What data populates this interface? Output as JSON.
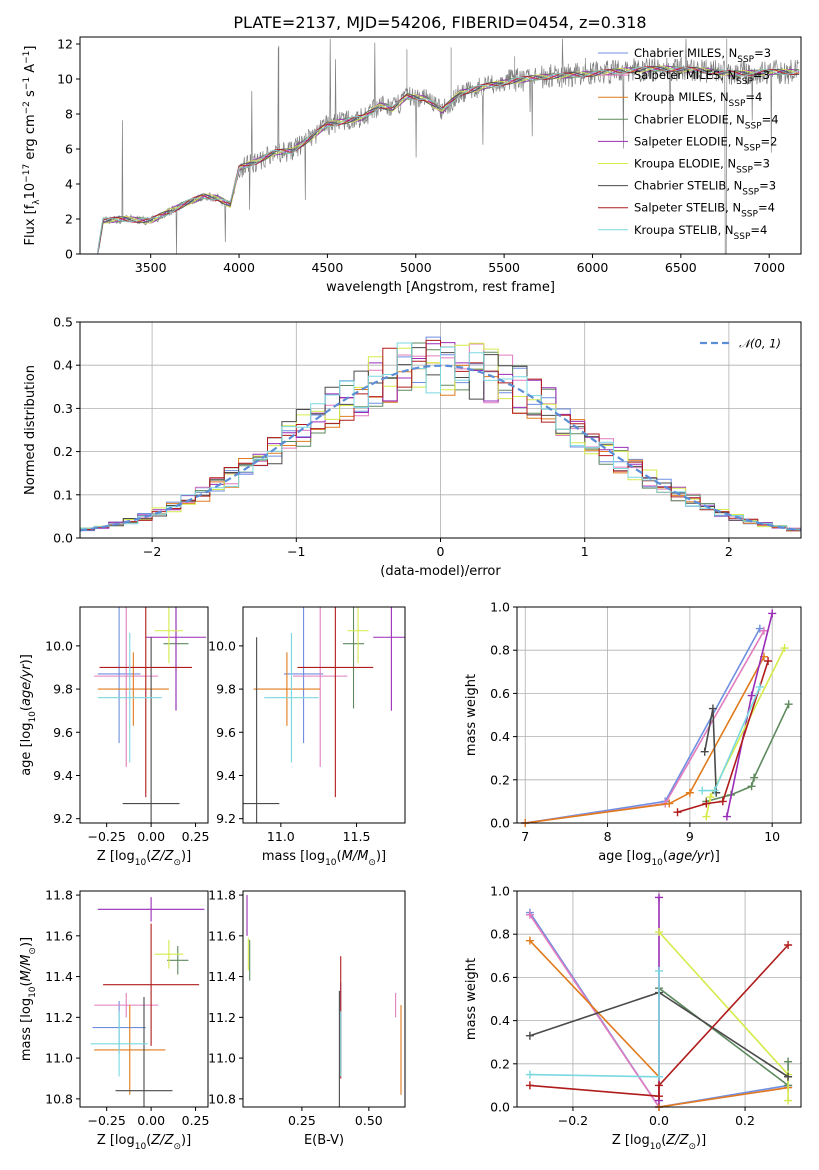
{
  "title": "PLATE=2137, MJD=54206, FIBERID=0454, z=0.318",
  "colors": {
    "spectrum": "#808080",
    "Chabrier MILES": "#6f8fe0",
    "Salpeter MILES": "#e07cbf",
    "Kroupa MILES": "#e07b1d",
    "Chabrier ELODIE": "#5e8a5e",
    "Salpeter ELODIE": "#9a2db8",
    "Kroupa ELODIE": "#d6ea4a",
    "Chabrier STELIB": "#4a4a4a",
    "Salpeter STELIB": "#b01c1c",
    "Kroupa STELIB": "#7ad8e0",
    "normal_fit": "#5b8ed6"
  },
  "chart_data": [
    {
      "id": "spectrum",
      "type": "line",
      "title": "PLATE=2137, MJD=54206, FIBERID=0454, z=0.318",
      "xlabel": "wavelength [Angstrom, rest frame]",
      "ylabel": "Flux [f_λ 10^-17 erg cm^-2 s^-1 A^-1]",
      "xlim": [
        3100,
        7180
      ],
      "ylim": [
        0,
        12.4
      ],
      "xticks": [
        3500,
        4000,
        4500,
        5000,
        5500,
        6000,
        6500,
        7000
      ],
      "yticks": [
        0,
        2,
        4,
        6,
        8,
        10,
        12
      ],
      "grid": false,
      "legend_position": "top-right",
      "continuum": [
        [
          3200,
          0
        ],
        [
          3230,
          1.9
        ],
        [
          3350,
          2.0
        ],
        [
          3500,
          1.9
        ],
        [
          3600,
          2.4
        ],
        [
          3700,
          2.9
        ],
        [
          3800,
          3.3
        ],
        [
          3880,
          3.2
        ],
        [
          3950,
          2.8
        ],
        [
          4000,
          4.9
        ],
        [
          4100,
          5.3
        ],
        [
          4200,
          5.8
        ],
        [
          4300,
          5.9
        ],
        [
          4400,
          6.6
        ],
        [
          4500,
          7.4
        ],
        [
          4600,
          7.6
        ],
        [
          4700,
          7.8
        ],
        [
          4800,
          8.5
        ],
        [
          4870,
          8.3
        ],
        [
          4950,
          9.0
        ],
        [
          5050,
          8.9
        ],
        [
          5150,
          8.2
        ],
        [
          5250,
          9.2
        ],
        [
          5400,
          9.6
        ],
        [
          5550,
          9.9
        ],
        [
          5700,
          10.1
        ],
        [
          5850,
          10.2
        ],
        [
          6000,
          10.3
        ],
        [
          6200,
          10.5
        ],
        [
          6400,
          10.6
        ],
        [
          6600,
          10.5
        ],
        [
          6800,
          10.3
        ],
        [
          7000,
          10.4
        ]
      ],
      "series": [
        {
          "name": "Chabrier MILES, N_SSP=3"
        },
        {
          "name": "Salpeter MILES, N_SSP=3"
        },
        {
          "name": "Kroupa MILES, N_SSP=4"
        },
        {
          "name": "Chabrier ELODIE, N_SSP=4"
        },
        {
          "name": "Salpeter ELODIE, N_SSP=2"
        },
        {
          "name": "Kroupa ELODIE, N_SSP=3"
        },
        {
          "name": "Chabrier STELIB, N_SSP=3"
        },
        {
          "name": "Salpeter STELIB, N_SSP=4"
        },
        {
          "name": "Kroupa STELIB, N_SSP=4"
        }
      ]
    },
    {
      "id": "residuals",
      "type": "bar",
      "xlabel": "(data-model)/error",
      "ylabel": "Normed distribution",
      "xlim": [
        -2.5,
        2.5
      ],
      "ylim": [
        0,
        0.5
      ],
      "xticks": [
        -2,
        -1,
        0,
        1,
        2
      ],
      "yticks": [
        0.0,
        0.1,
        0.2,
        0.3,
        0.4,
        0.5
      ],
      "grid": true,
      "legend_position": "top-right",
      "normal_label": "𝒩(0, 1)",
      "bin_width": 0.1
    },
    {
      "id": "age-Z",
      "type": "scatter",
      "xlabel": "Z [log10(Z/Z⊙)]",
      "ylabel": "age [log10(age/yr)]",
      "xlim": [
        -0.4,
        0.32
      ],
      "ylim": [
        9.18,
        10.18
      ],
      "xticks": [
        -0.25,
        0.0,
        0.25
      ],
      "yticks": [
        9.2,
        9.4,
        9.6,
        9.8,
        10.0
      ],
      "points": [
        {
          "name": "Chabrier MILES",
          "x": -0.18,
          "y": 9.87,
          "xerr": 0.12,
          "yerr": 0.32
        },
        {
          "name": "Salpeter MILES",
          "x": -0.14,
          "y": 9.86,
          "xerr": 0.18,
          "yerr": 0.42
        },
        {
          "name": "Kroupa MILES",
          "x": -0.1,
          "y": 9.8,
          "xerr": 0.2,
          "yerr": 0.17
        },
        {
          "name": "Chabrier ELODIE",
          "x": 0.14,
          "y": 10.01,
          "xerr": 0.07,
          "yerr": 0.3
        },
        {
          "name": "Salpeter ELODIE",
          "x": 0.14,
          "y": 10.04,
          "xerr": 0.17,
          "yerr": 0.34
        },
        {
          "name": "Kroupa ELODIE",
          "x": 0.1,
          "y": 10.07,
          "xerr": 0.08,
          "yerr": 0.15
        },
        {
          "name": "Chabrier STELIB",
          "x": 0.0,
          "y": 9.27,
          "xerr": 0.16,
          "yerr": 0.77
        },
        {
          "name": "Salpeter STELIB",
          "x": -0.03,
          "y": 9.9,
          "xerr": 0.26,
          "yerr": 0.6
        },
        {
          "name": "Kroupa STELIB",
          "x": -0.12,
          "y": 9.76,
          "xerr": 0.18,
          "yerr": 0.3
        }
      ]
    },
    {
      "id": "age-mass",
      "type": "scatter",
      "xlabel": "mass [log10(M/M⊙)]",
      "ylabel": "",
      "xlim": [
        10.75,
        11.82
      ],
      "ylim": [
        9.18,
        10.18
      ],
      "xticks": [
        11.0,
        11.5
      ],
      "yticks": [
        9.2,
        9.4,
        9.6,
        9.8,
        10.0
      ],
      "points": [
        {
          "name": "Chabrier MILES",
          "x": 11.15,
          "y": 9.87,
          "xerr": 0.13,
          "yerr": 0.32
        },
        {
          "name": "Salpeter MILES",
          "x": 11.26,
          "y": 9.86,
          "xerr": 0.18,
          "yerr": 0.42
        },
        {
          "name": "Kroupa MILES",
          "x": 11.04,
          "y": 9.8,
          "xerr": 0.22,
          "yerr": 0.17
        },
        {
          "name": "Chabrier ELODIE",
          "x": 11.48,
          "y": 10.01,
          "xerr": 0.07,
          "yerr": 0.3
        },
        {
          "name": "Salpeter ELODIE",
          "x": 11.73,
          "y": 10.04,
          "xerr": 0.12,
          "yerr": 0.34
        },
        {
          "name": "Kroupa ELODIE",
          "x": 11.51,
          "y": 10.07,
          "xerr": 0.07,
          "yerr": 0.15
        },
        {
          "name": "Chabrier STELIB",
          "x": 10.84,
          "y": 9.27,
          "xerr": 0.15,
          "yerr": 0.77
        },
        {
          "name": "Salpeter STELIB",
          "x": 11.36,
          "y": 9.9,
          "xerr": 0.25,
          "yerr": 0.6
        },
        {
          "name": "Kroupa STELIB",
          "x": 11.07,
          "y": 9.76,
          "xerr": 0.18,
          "yerr": 0.3
        }
      ]
    },
    {
      "id": "weight-age",
      "type": "line",
      "xlabel": "age [log10(age/yr)]",
      "ylabel": "mass weight",
      "xlim": [
        6.9,
        10.35
      ],
      "ylim": [
        0,
        1.0
      ],
      "xticks": [
        7,
        8,
        9,
        10
      ],
      "yticks": [
        0.0,
        0.2,
        0.4,
        0.6,
        0.8,
        1.0
      ],
      "grid": true,
      "series": [
        {
          "name": "Chabrier MILES",
          "points": [
            [
              7.0,
              0.0
            ],
            [
              8.7,
              0.1
            ],
            [
              9.85,
              0.9
            ]
          ]
        },
        {
          "name": "Salpeter MILES",
          "points": [
            [
              7.0,
              0.0
            ],
            [
              8.7,
              0.09
            ],
            [
              9.9,
              0.89
            ]
          ]
        },
        {
          "name": "Kroupa MILES",
          "points": [
            [
              7.0,
              0.0
            ],
            [
              8.75,
              0.09
            ],
            [
              9.0,
              0.14
            ],
            [
              9.9,
              0.77
            ]
          ]
        },
        {
          "name": "Chabrier ELODIE",
          "points": [
            [
              9.2,
              0.1
            ],
            [
              9.5,
              0.13
            ],
            [
              9.75,
              0.17
            ],
            [
              9.78,
              0.21
            ],
            [
              10.2,
              0.55
            ]
          ]
        },
        {
          "name": "Salpeter ELODIE",
          "points": [
            [
              9.45,
              0.03
            ],
            [
              9.75,
              0.59
            ],
            [
              10.0,
              0.97
            ]
          ]
        },
        {
          "name": "Kroupa ELODIE",
          "points": [
            [
              9.2,
              0.03
            ],
            [
              9.25,
              0.12
            ],
            [
              10.15,
              0.81
            ]
          ]
        },
        {
          "name": "Chabrier STELIB",
          "points": [
            [
              9.18,
              0.33
            ],
            [
              9.28,
              0.53
            ],
            [
              9.32,
              0.14
            ]
          ]
        },
        {
          "name": "Salpeter STELIB",
          "points": [
            [
              8.85,
              0.05
            ],
            [
              9.2,
              0.09
            ],
            [
              9.4,
              0.1
            ],
            [
              9.95,
              0.75
            ]
          ]
        },
        {
          "name": "Kroupa STELIB",
          "points": [
            [
              9.15,
              0.15
            ],
            [
              9.3,
              0.15
            ],
            [
              9.85,
              0.63
            ]
          ]
        }
      ]
    },
    {
      "id": "mass-Z",
      "type": "scatter",
      "xlabel": "Z [log10(Z/Z⊙)]",
      "ylabel": "mass [log10(M/M⊙)]",
      "xlim": [
        -0.4,
        0.32
      ],
      "ylim": [
        10.76,
        11.82
      ],
      "xticks": [
        -0.25,
        0.0,
        0.25
      ],
      "yticks": [
        10.8,
        11.0,
        11.2,
        11.4,
        11.6,
        11.8
      ],
      "points": [
        {
          "name": "Chabrier MILES",
          "x": -0.18,
          "y": 11.15,
          "xerr": 0.15,
          "yerr": 0.13
        },
        {
          "name": "Salpeter MILES",
          "x": -0.14,
          "y": 11.26,
          "xerr": 0.18,
          "yerr": 0.06
        },
        {
          "name": "Kroupa MILES",
          "x": -0.12,
          "y": 11.04,
          "xerr": 0.2,
          "yerr": 0.22
        },
        {
          "name": "Chabrier ELODIE",
          "x": 0.15,
          "y": 11.48,
          "xerr": 0.06,
          "yerr": 0.07
        },
        {
          "name": "Salpeter ELODIE",
          "x": 0.0,
          "y": 11.73,
          "xerr": 0.3,
          "yerr": 0.06
        },
        {
          "name": "Kroupa ELODIE",
          "x": 0.1,
          "y": 11.51,
          "xerr": 0.08,
          "yerr": 0.07
        },
        {
          "name": "Chabrier STELIB",
          "x": -0.04,
          "y": 10.84,
          "xerr": 0.16,
          "yerr": 0.46
        },
        {
          "name": "Salpeter STELIB",
          "x": 0.0,
          "y": 11.36,
          "xerr": 0.27,
          "yerr": 0.3
        },
        {
          "name": "Kroupa STELIB",
          "x": -0.18,
          "y": 11.07,
          "xerr": 0.16,
          "yerr": 0.16
        }
      ]
    },
    {
      "id": "mass-EBV",
      "type": "scatter",
      "xlabel": "E(B-V)",
      "ylabel": "",
      "xlim": [
        0.03,
        0.635
      ],
      "ylim": [
        10.76,
        11.82
      ],
      "xticks": [
        0.25,
        0.5
      ],
      "yticks": [
        10.8,
        11.0,
        11.2,
        11.4,
        11.6,
        11.8
      ],
      "points": [
        {
          "name": "Chabrier MILES",
          "x": 0.395,
          "y": 11.15,
          "yerr": 0.22
        },
        {
          "name": "Salpeter MILES",
          "x": 0.6,
          "y": 11.26,
          "yerr": 0.06
        },
        {
          "name": "Kroupa MILES",
          "x": 0.62,
          "y": 11.04,
          "yerr": 0.22
        },
        {
          "name": "Chabrier ELODIE",
          "x": 0.055,
          "y": 11.48,
          "yerr": 0.1
        },
        {
          "name": "Salpeter ELODIE",
          "x": 0.045,
          "y": 11.7,
          "yerr": 0.1
        },
        {
          "name": "Kroupa ELODIE",
          "x": 0.05,
          "y": 11.51,
          "yerr": 0.08
        },
        {
          "name": "Chabrier STELIB",
          "x": 0.39,
          "y": 11.0,
          "yerr": 0.33
        },
        {
          "name": "Salpeter STELIB",
          "x": 0.395,
          "y": 11.2,
          "yerr": 0.3
        },
        {
          "name": "Kroupa STELIB",
          "x": 0.395,
          "y": 11.07,
          "yerr": 0.16
        }
      ]
    },
    {
      "id": "weight-Z",
      "type": "line",
      "xlabel": "Z [log10(Z/Z⊙)]",
      "ylabel": "mass weight",
      "xlim": [
        -0.33,
        0.33
      ],
      "ylim": [
        0,
        1.0
      ],
      "xticks": [
        -0.2,
        0.0,
        0.2
      ],
      "yticks": [
        0.0,
        0.2,
        0.4,
        0.6,
        0.8,
        1.0
      ],
      "grid": true,
      "series": [
        {
          "name": "Chabrier MILES",
          "points": [
            [
              -0.3,
              0.9
            ],
            [
              0.0,
              0.0
            ],
            [
              0.3,
              0.1
            ]
          ]
        },
        {
          "name": "Salpeter MILES",
          "points": [
            [
              -0.3,
              0.89
            ],
            [
              0.0,
              0.0
            ],
            [
              0.3,
              0.09
            ]
          ]
        },
        {
          "name": "Kroupa MILES",
          "points": [
            [
              -0.3,
              0.77
            ],
            [
              0.0,
              0.14
            ],
            [
              0.0,
              0.0
            ],
            [
              0.3,
              0.09
            ]
          ]
        },
        {
          "name": "Chabrier ELODIE",
          "points": [
            [
              0.0,
              0.55
            ],
            [
              0.3,
              0.1
            ],
            [
              0.3,
              0.21
            ]
          ]
        },
        {
          "name": "Salpeter ELODIE",
          "points": [
            [
              0.0,
              0.03
            ],
            [
              0.0,
              0.97
            ]
          ]
        },
        {
          "name": "Kroupa ELODIE",
          "points": [
            [
              0.0,
              0.81
            ],
            [
              0.3,
              0.15
            ],
            [
              0.3,
              0.03
            ]
          ]
        },
        {
          "name": "Chabrier STELIB",
          "points": [
            [
              -0.3,
              0.33
            ],
            [
              0.0,
              0.53
            ],
            [
              0.3,
              0.14
            ]
          ]
        },
        {
          "name": "Salpeter STELIB",
          "points": [
            [
              -0.3,
              0.1
            ],
            [
              0.0,
              0.05
            ],
            [
              0.0,
              0.1
            ],
            [
              0.3,
              0.75
            ]
          ]
        },
        {
          "name": "Kroupa STELIB",
          "points": [
            [
              -0.3,
              0.15
            ],
            [
              0.0,
              0.14
            ],
            [
              0.0,
              0.63
            ]
          ]
        }
      ]
    }
  ]
}
